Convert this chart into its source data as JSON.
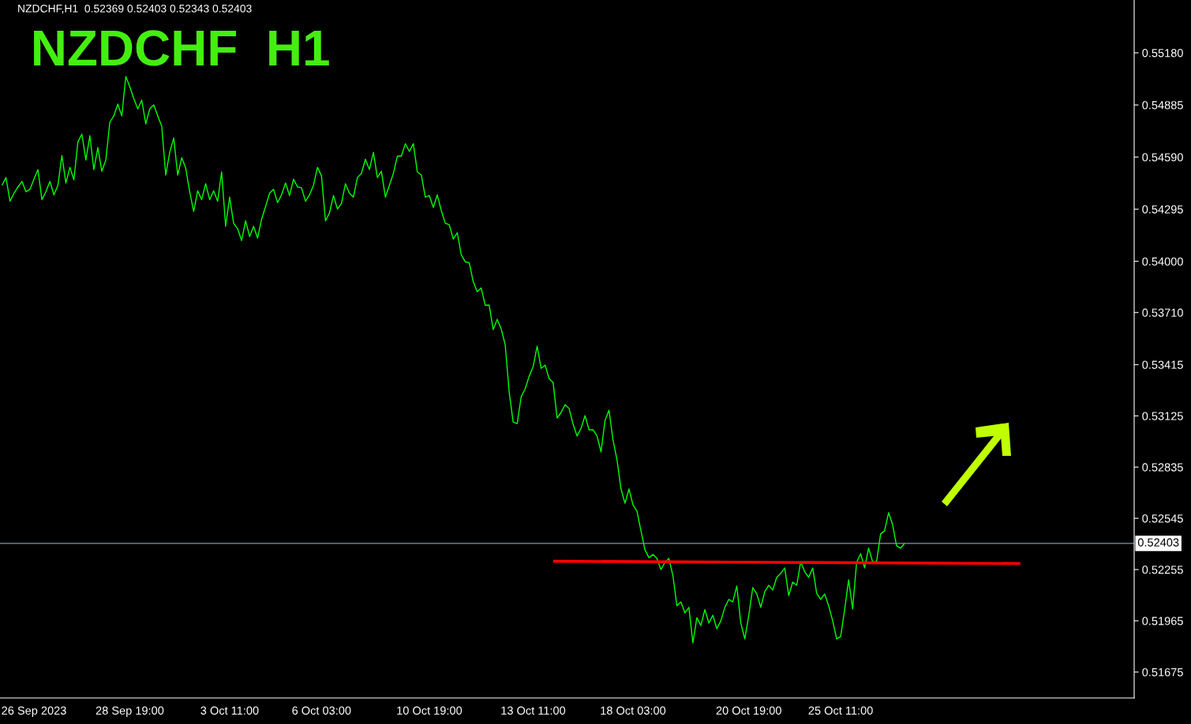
{
  "chart_data": {
    "type": "line",
    "title": "NZDCHF  H1",
    "annotations": [
      "NZDCHF,H1  0.52369 0.52403 0.52343 0.52403"
    ],
    "categories": [
      null,
      null,
      null,
      null,
      null,
      null,
      null,
      null,
      "26 Sep 2023",
      null,
      null,
      null,
      null,
      null,
      null,
      null,
      null,
      null,
      null,
      null,
      null,
      null,
      null,
      null,
      null,
      null,
      null,
      null,
      null,
      null,
      null,
      null,
      "28 Sep 19:00",
      null,
      null,
      null,
      null,
      null,
      null,
      null,
      null,
      null,
      null,
      null,
      null,
      null,
      null,
      null,
      null,
      null,
      null,
      null,
      null,
      null,
      null,
      null,
      null,
      "3 Oct 11:00",
      null,
      null,
      null,
      null,
      null,
      null,
      null,
      null,
      null,
      null,
      null,
      null,
      null,
      null,
      null,
      null,
      null,
      null,
      null,
      null,
      null,
      null,
      "6 Oct 03:00",
      null,
      null,
      null,
      null,
      null,
      null,
      null,
      null,
      null,
      null,
      null,
      null,
      null,
      null,
      null,
      null,
      null,
      null,
      null,
      null,
      null,
      null,
      null,
      null,
      null,
      null,
      "10 Oct 19:00",
      null,
      null,
      null,
      null,
      null,
      null,
      null,
      null,
      null,
      null,
      null,
      null,
      null,
      null,
      null,
      null,
      null,
      null,
      null,
      null,
      null,
      null,
      null,
      null,
      null,
      "13 Oct 11:00",
      null,
      null,
      null,
      null,
      null,
      null,
      null,
      null,
      null,
      null,
      null,
      null,
      null,
      null,
      null,
      null,
      null,
      null,
      null,
      null,
      null,
      null,
      null,
      null,
      "18 Oct 03:00",
      null,
      null,
      null,
      null,
      null,
      null,
      null,
      null,
      null,
      null,
      null,
      null,
      null,
      null,
      null,
      null,
      null,
      null,
      null,
      null,
      null,
      null,
      null,
      null,
      null,
      null,
      null,
      null,
      "20 Oct 19:00",
      null,
      null,
      null,
      null,
      null,
      null,
      null,
      null,
      null,
      null,
      null,
      null,
      null,
      null,
      null,
      null,
      null,
      null,
      null,
      null,
      null,
      null,
      "25 Oct 11:00",
      null,
      null,
      null,
      null,
      null,
      null,
      null,
      null,
      null,
      null,
      null,
      null,
      null,
      null,
      null,
      null,
      null,
      null,
      null,
      null,
      null,
      null,
      null,
      null,
      null,
      null,
      null,
      null,
      null,
      null,
      null,
      null,
      null,
      null,
      null,
      null,
      null,
      null,
      null,
      null,
      null,
      null,
      null,
      null,
      null,
      null,
      null,
      null,
      null,
      null,
      null,
      null,
      null,
      null,
      null,
      null,
      null,
      null,
      null,
      null,
      null,
      null,
      null,
      null,
      null,
      null,
      null,
      null,
      null,
      null,
      null,
      null,
      null
    ],
    "series": [
      {
        "color": "#00ff00",
        "values": [
          0.5443,
          0.54474,
          0.5434,
          0.54385,
          0.54421,
          0.54452,
          0.54394,
          0.54407,
          0.54465,
          0.54519,
          0.54349,
          0.54394,
          0.54452,
          0.54376,
          0.5443,
          0.54599,
          0.54443,
          0.54532,
          0.54461,
          0.54675,
          0.5472,
          0.54573,
          0.54711,
          0.54519,
          0.54644,
          0.5451,
          0.54573,
          0.54787,
          0.54823,
          0.5489,
          0.54823,
          0.55046,
          0.54988,
          0.54921,
          0.54863,
          0.54912,
          0.54778,
          0.54863,
          0.54885,
          0.54823,
          0.54765,
          0.54488,
          0.54617,
          0.54698,
          0.54488,
          0.54586,
          0.54528,
          0.54394,
          0.54282,
          0.54399,
          0.54349,
          0.54439,
          0.54349,
          0.54399,
          0.5434,
          0.54506,
          0.54198,
          0.54363,
          0.54215,
          0.54184,
          0.54117,
          0.54229,
          0.5414,
          0.54198,
          0.54131,
          0.54238,
          0.54309,
          0.54385,
          0.54407,
          0.54332,
          0.54376,
          0.54443,
          0.54372,
          0.54465,
          0.54421,
          0.54416,
          0.5434,
          0.54376,
          0.5443,
          0.54532,
          0.54483,
          0.54229,
          0.54273,
          0.54372,
          0.54296,
          0.54327,
          0.54439,
          0.54385,
          0.54363,
          0.54474,
          0.54497,
          0.54577,
          0.54519,
          0.54617,
          0.54474,
          0.5451,
          0.54363,
          0.5443,
          0.54497,
          0.54595,
          0.54595,
          0.54666,
          0.54622,
          0.54666,
          0.54506,
          0.54488,
          0.54363,
          0.54372,
          0.54305,
          0.54376,
          0.54287,
          0.54215,
          0.54207,
          0.54126,
          0.54162,
          0.54037,
          0.53997,
          0.53992,
          0.53885,
          0.53827,
          0.53849,
          0.53751,
          0.53751,
          0.53613,
          0.53671,
          0.53617,
          0.53528,
          0.5326,
          0.5309,
          0.53081,
          0.53233,
          0.53278,
          0.53349,
          0.53403,
          0.53519,
          0.53394,
          0.53412,
          0.53336,
          0.53314,
          0.53113,
          0.53144,
          0.53189,
          0.53167,
          0.53078,
          0.53011,
          0.53055,
          0.53126,
          0.53046,
          0.53046,
          0.53011,
          0.52921,
          0.53099,
          0.53157,
          0.52988,
          0.52876,
          0.52711,
          0.5263,
          0.52711,
          0.52621,
          0.52586,
          0.52474,
          0.52367,
          0.52322,
          0.5234,
          0.52318,
          0.52255,
          0.52296,
          0.52318,
          0.5222,
          0.5205,
          0.52072,
          0.5201,
          0.52041,
          0.5184,
          0.51983,
          0.51938,
          0.52028,
          0.51952,
          0.51996,
          0.5192,
          0.51965,
          0.52041,
          0.52086,
          0.52072,
          0.52162,
          0.51952,
          0.51862,
          0.51996,
          0.52153,
          0.52117,
          0.52041,
          0.5213,
          0.52166,
          0.52139,
          0.52211,
          0.52233,
          0.52264,
          0.52108,
          0.52184,
          0.52166,
          0.523,
          0.52242,
          0.52211,
          0.52264,
          0.52121,
          0.52086,
          0.52117,
          0.5205,
          0.51965,
          0.51862,
          0.51876,
          0.52028,
          0.52197,
          0.52032,
          0.52296,
          0.52345,
          0.52264,
          0.52376,
          0.523,
          0.523,
          0.52456,
          0.52474,
          0.52577,
          0.5251,
          0.52389,
          0.52376,
          0.52403,
          null,
          null,
          null,
          null,
          null,
          null,
          null,
          null,
          null,
          null,
          null,
          null,
          null,
          null,
          null,
          null,
          null,
          null,
          null,
          null,
          null,
          null,
          null,
          null,
          null,
          null,
          null,
          null,
          null,
          null,
          null,
          null,
          null,
          null,
          null,
          null,
          null,
          null,
          null,
          null,
          null,
          null,
          null,
          null,
          null,
          null,
          null,
          null,
          null,
          null,
          null,
          null,
          null,
          null,
          null,
          null,
          null
        ]
      },
      {
        "type": "line",
        "color": "#ff0000",
        "values": [
          null,
          null,
          null,
          null,
          null,
          null,
          null,
          null,
          null,
          null,
          null,
          null,
          null,
          null,
          null,
          null,
          null,
          null,
          null,
          null,
          null,
          null,
          null,
          null,
          null,
          null,
          null,
          null,
          null,
          null,
          null,
          null,
          null,
          null,
          null,
          null,
          null,
          null,
          null,
          null,
          null,
          null,
          null,
          null,
          null,
          null,
          null,
          null,
          null,
          null,
          null,
          null,
          null,
          null,
          null,
          null,
          null,
          null,
          null,
          null,
          null,
          null,
          null,
          null,
          null,
          null,
          null,
          null,
          null,
          null,
          null,
          null,
          null,
          null,
          null,
          null,
          null,
          null,
          null,
          null,
          null,
          null,
          null,
          null,
          null,
          null,
          null,
          null,
          null,
          null,
          null,
          null,
          null,
          null,
          null,
          null,
          null,
          null,
          null,
          null,
          null,
          null,
          null,
          null,
          null,
          null,
          null,
          null,
          null,
          null,
          null,
          null,
          null,
          null,
          null,
          null,
          null,
          null,
          null,
          null,
          null,
          null,
          null,
          null,
          null,
          null,
          null,
          null,
          null,
          null,
          null,
          null,
          null,
          null,
          null,
          null,
          null,
          null,
          0.52302,
          null,
          null,
          null,
          null,
          null,
          null,
          null,
          null,
          null,
          null,
          null,
          null,
          null,
          null,
          null,
          null,
          null,
          null,
          null,
          null,
          null,
          null,
          null,
          null,
          null,
          null,
          null,
          null,
          null,
          null,
          null,
          null,
          null,
          null,
          null,
          null,
          null,
          null,
          null,
          null,
          null,
          null,
          null,
          null,
          null,
          null,
          null,
          null,
          null,
          null,
          null,
          null,
          null,
          null,
          null,
          null,
          null,
          null,
          null,
          null,
          null,
          null,
          null,
          null,
          null,
          null,
          null,
          null,
          null,
          null,
          null,
          null,
          null,
          null,
          null,
          null,
          null,
          null,
          null,
          null,
          null,
          null,
          null,
          null,
          null,
          null,
          null,
          null,
          null,
          null,
          null,
          null,
          null,
          null,
          null,
          null,
          null,
          null,
          null,
          null,
          null,
          null,
          null,
          null,
          null,
          null,
          null,
          null,
          null,
          null,
          null,
          null,
          null,
          null,
          null,
          null,
          0.52289,
          null,
          null,
          null,
          null,
          null,
          null,
          null,
          null,
          null,
          null,
          null,
          null,
          null,
          null,
          null,
          null,
          null,
          null,
          null,
          null,
          null,
          null,
          null,
          null,
          null,
          null,
          null,
          null
        ]
      }
    ],
    "ylim": [
      0.51528,
      0.55479
    ],
    "yticks": [
      0.51675,
      0.51965,
      0.52255,
      0.52545,
      0.52835,
      0.53125,
      0.53415,
      {
        "value": 0.5371,
        "label": "0.53710"
      },
      {
        "value": 0.54,
        "label": "0.54000"
      },
      0.54295,
      {
        "value": 0.5459,
        "label": "0.54590"
      },
      0.54885,
      {
        "value": 0.5518,
        "label": "0.55180"
      }
    ],
    "ref_lines": [
      {
        "axis": "y",
        "value": 0.52403,
        "label": "0.52403",
        "color": "#6e7f90"
      }
    ],
    "grid": false
  }
}
